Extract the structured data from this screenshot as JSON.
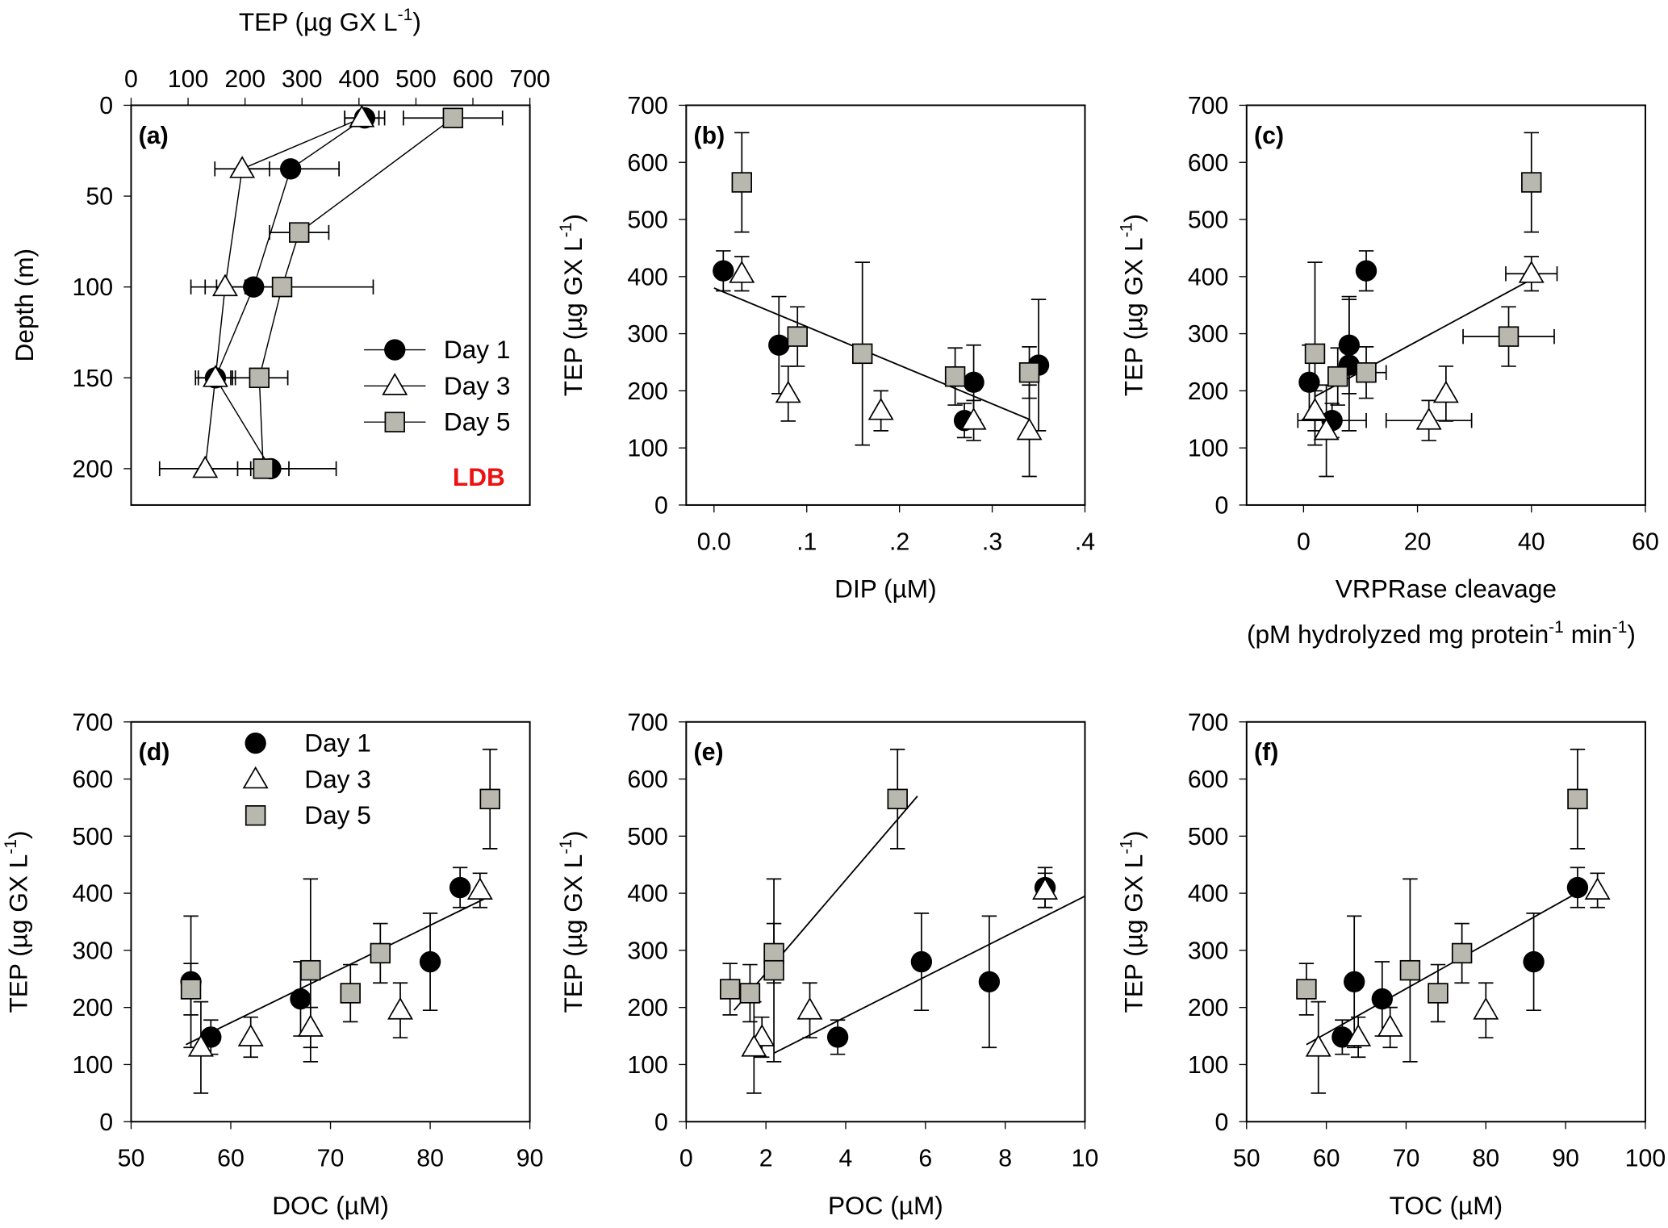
{
  "colors": {
    "day5_fill": "#b8b8ae",
    "ldb": "#ee1111"
  },
  "chart_data": {
    "type": "scatter",
    "legend_entries": [
      "Day 1",
      "Day 3",
      "Day 5"
    ],
    "tep_errors": {
      "Day 1": [
        35,
        85,
        65,
        30,
        115
      ],
      "Day 3": [
        30,
        48,
        35,
        35,
        80
      ],
      "Day 5": [
        87,
        52,
        160,
        50,
        45
      ]
    },
    "panels": [
      {
        "id": "a",
        "label": "(a)",
        "type": "line",
        "xlabel": "TEP (µg GX L",
        "xlabel_sup": "-1",
        "xlabel_end": ")",
        "ylabel": "Depth (m)",
        "xlim": [
          0,
          700
        ],
        "ylim": [
          220,
          0
        ],
        "xticks": [
          0,
          100,
          200,
          300,
          400,
          500,
          600,
          700
        ],
        "yticks": [
          0,
          50,
          100,
          150,
          200
        ],
        "annotation": "LDB",
        "legend": "center-right",
        "series": [
          {
            "name": "Day 1",
            "depth": [
              7,
              35,
              100,
              150,
              200
            ],
            "tep": [
              410,
              280,
              215,
              148,
              245
            ]
          },
          {
            "name": "Day 3",
            "depth": [
              7,
              35,
              100,
              150,
              200
            ],
            "tep": [
              405,
              195,
              165,
              148,
              130
            ]
          },
          {
            "name": "Day 5",
            "depth": [
              7,
              70,
              100,
              150,
              200
            ],
            "tep": [
              565,
              295,
              265,
              225,
              232
            ]
          }
        ]
      },
      {
        "id": "b",
        "label": "(b)",
        "xlabel": "DIP (µM)",
        "ylabel": "TEP (µg GX L",
        "ylabel_sup": "-1",
        "ylabel_end": ")",
        "xlim": [
          -0.03,
          0.4
        ],
        "ylim": [
          0,
          700
        ],
        "xticks": [
          0,
          0.1,
          0.2,
          0.3,
          0.4
        ],
        "xticklabels": [
          "0.0",
          ".1",
          ".2",
          ".3",
          ".4"
        ],
        "yticks": [
          0,
          100,
          200,
          300,
          400,
          500,
          600,
          700
        ],
        "x": {
          "Day 1": [
            0.01,
            0.07,
            0.28,
            0.27,
            0.35
          ],
          "Day 3": [
            0.03,
            0.08,
            0.18,
            0.28,
            0.34
          ],
          "Day 5": [
            0.03,
            0.09,
            0.16,
            0.26,
            0.34
          ]
        },
        "fits": [
          [
            [
              0,
              380
            ],
            [
              0.34,
              150
            ]
          ]
        ]
      },
      {
        "id": "c",
        "label": "(c)",
        "xlabel": "VRPRase cleavage",
        "xlabel2": "(pM hydrolyzed mg protein",
        "xlabel2_sup1": "-1",
        "xlabel2_mid": " min",
        "xlabel2_sup2": "-1",
        "xlabel2_end": ")",
        "ylabel": "TEP (µg GX L",
        "ylabel_sup": "-1",
        "ylabel_end": ")",
        "xlim": [
          -10,
          60
        ],
        "ylim": [
          0,
          700
        ],
        "xticks": [
          0,
          20,
          40,
          60
        ],
        "yticks": [
          0,
          100,
          200,
          300,
          400,
          500,
          600,
          700
        ],
        "x": {
          "Day 1": [
            11,
            8,
            1,
            5,
            8
          ],
          "Day 3": [
            40,
            25,
            2,
            22,
            4
          ],
          "Day 5": [
            40,
            36,
            2,
            6,
            11
          ]
        },
        "xerr": {
          "Day 1": [
            0,
            0,
            0,
            6,
            0
          ],
          "Day 3": [
            4.5,
            0,
            0,
            7.5,
            0
          ],
          "Day 5": [
            0,
            8,
            0,
            0,
            3.5
          ]
        },
        "fits": [
          [
            [
              2,
              190
            ],
            [
              40,
              395
            ]
          ]
        ]
      },
      {
        "id": "d",
        "label": "(d)",
        "xlabel": "DOC (µM)",
        "ylabel": "TEP (µg GX L",
        "ylabel_sup": "-1",
        "ylabel_end": ")",
        "xlim": [
          50,
          90
        ],
        "ylim": [
          0,
          700
        ],
        "legend": "top-left",
        "xticks": [
          50,
          60,
          70,
          80,
          90
        ],
        "yticks": [
          0,
          100,
          200,
          300,
          400,
          500,
          600,
          700
        ],
        "x": {
          "Day 1": [
            83,
            80,
            67,
            58,
            56
          ],
          "Day 3": [
            85,
            77,
            68,
            62,
            57
          ],
          "Day 5": [
            86,
            75,
            68,
            72,
            56
          ]
        },
        "fits": [
          [
            [
              55.5,
              135
            ],
            [
              86,
              395
            ]
          ]
        ]
      },
      {
        "id": "e",
        "label": "(e)",
        "xlabel": "POC (µM)",
        "ylabel": "TEP (µg GX L",
        "ylabel_sup": "-1",
        "ylabel_end": ")",
        "xlim": [
          0,
          10
        ],
        "ylim": [
          0,
          700
        ],
        "xticks": [
          0,
          2,
          4,
          6,
          8,
          10
        ],
        "yticks": [
          0,
          100,
          200,
          300,
          400,
          500,
          600,
          700
        ],
        "x": {
          "Day 1": [
            9,
            5.9,
            null,
            3.8,
            7.6
          ],
          "Day 3": [
            9,
            3.1,
            null,
            1.9,
            1.7
          ],
          "Day 5": [
            5.3,
            2.2,
            2.2,
            1.6,
            1.1
          ]
        },
        "fits": [
          [
            [
              1.2,
              195
            ],
            [
              5.8,
              570
            ]
          ],
          [
            [
              2.2,
              120
            ],
            [
              10,
              395
            ]
          ]
        ]
      },
      {
        "id": "f",
        "label": "(f)",
        "xlabel": "TOC (µM)",
        "ylabel": "TEP (µg GX L",
        "ylabel_sup": "-1",
        "ylabel_end": ")",
        "xlim": [
          50,
          100
        ],
        "ylim": [
          0,
          700
        ],
        "xticks": [
          50,
          60,
          70,
          80,
          90,
          100
        ],
        "yticks": [
          0,
          100,
          200,
          300,
          400,
          500,
          600,
          700
        ],
        "x": {
          "Day 1": [
            91.5,
            86,
            67,
            62,
            63.5
          ],
          "Day 3": [
            94,
            80,
            68,
            64,
            59
          ],
          "Day 5": [
            91.5,
            77,
            70.5,
            74,
            57.5
          ]
        },
        "fits": [
          [
            [
              57.5,
              135
            ],
            [
              92,
              405
            ]
          ]
        ]
      }
    ]
  }
}
